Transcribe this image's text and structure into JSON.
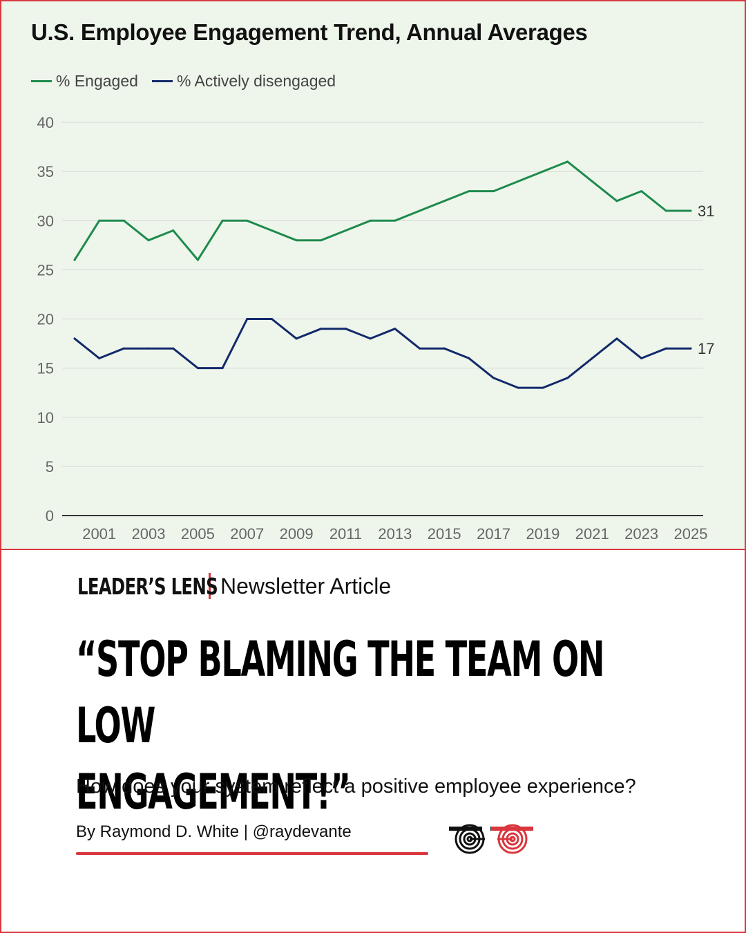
{
  "chart_data": {
    "type": "line",
    "title": "U.S. Employee Engagement Trend, Annual Averages",
    "xlabel": "",
    "ylabel": "",
    "ylim": [
      0,
      40
    ],
    "yticks": [
      "0",
      "5",
      "10",
      "15",
      "20",
      "25",
      "30",
      "35",
      "40"
    ],
    "xticks": [
      "2001",
      "2003",
      "2005",
      "2007",
      "2009",
      "2011",
      "2013",
      "2015",
      "2017",
      "2019",
      "2021",
      "2023",
      "2025"
    ],
    "x": [
      2000,
      2001,
      2002,
      2003,
      2004,
      2005,
      2006,
      2007,
      2008,
      2009,
      2010,
      2011,
      2012,
      2013,
      2014,
      2015,
      2016,
      2017,
      2018,
      2019,
      2020,
      2021,
      2022,
      2023,
      2024,
      2025
    ],
    "series": [
      {
        "name": "% Engaged",
        "color": "#1e8a4c",
        "values": [
          26,
          30,
          30,
          28,
          29,
          26,
          30,
          30,
          29,
          28,
          28,
          29,
          30,
          30,
          31,
          32,
          33,
          33,
          34,
          35,
          36,
          34,
          32,
          33,
          31,
          31
        ],
        "end_label": "31"
      },
      {
        "name": "% Actively disengaged",
        "color": "#12296b",
        "values": [
          18,
          16,
          17,
          17,
          17,
          15,
          15,
          20,
          20,
          18,
          19,
          19,
          18,
          19,
          17,
          17,
          16,
          14,
          13,
          13,
          14,
          16,
          18,
          16,
          17,
          17
        ],
        "end_label": "17"
      }
    ],
    "grid": true,
    "legend_position": "top-left"
  },
  "brand": {
    "name": "LEADER’S LENS",
    "subtitle": "Newsletter Article"
  },
  "headline": {
    "line1": "“STOP BLAMING THE TEAM ON LOW",
    "line2": "ENGAGEMENT!”"
  },
  "tagline": "How does your system reflect a positive employee experience?",
  "byline": "By Raymond D. White | @raydevante",
  "colors": {
    "accent": "#d9363e",
    "chart_background": "#eef6ec",
    "gridline": "#d9ddd6"
  },
  "logo": {
    "icon": "double-spiral-glasses-icon"
  }
}
